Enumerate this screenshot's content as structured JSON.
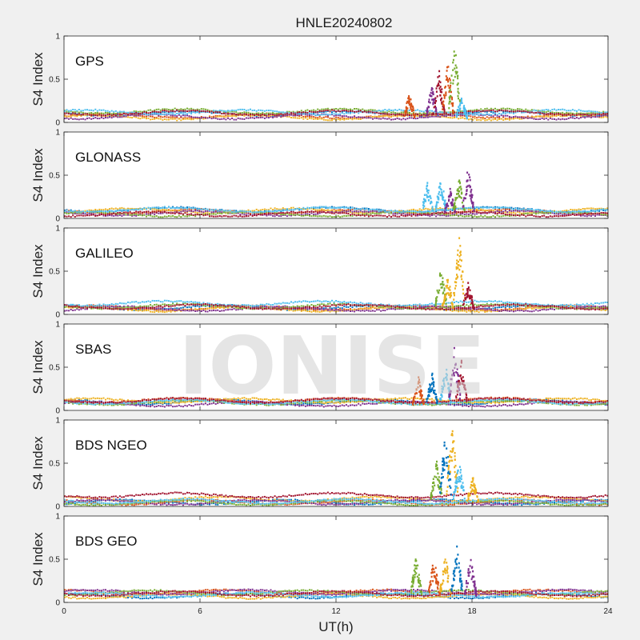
{
  "figure": {
    "title": "HNLE20240802",
    "watermark": "IONISE"
  },
  "colors": {
    "series": [
      "#0072BD",
      "#D95319",
      "#EDB120",
      "#7E2F8E",
      "#77AC30",
      "#4DBEEE",
      "#A2142F"
    ],
    "axes_background": "#ffffff",
    "figure_background": "#f0f0f0"
  },
  "chart_data": {
    "type": "scatter",
    "title": "HNLE20240802",
    "xlabel": "UT(h)",
    "xlim": [
      0,
      24
    ],
    "xticks": [
      "0",
      "6",
      "12",
      "18",
      "24"
    ],
    "panels": [
      {
        "label": "GPS",
        "ylabel": "S4 Index",
        "ylim": [
          0,
          1
        ],
        "yticks": [
          "0",
          "0.5",
          "1"
        ],
        "baseline": [
          0.03,
          0.15
        ],
        "enhancement_window_h": [
          14.8,
          18.0
        ],
        "enhancement_peaks": [
          {
            "t": 15.2,
            "s4": 0.35,
            "series": 1
          },
          {
            "t": 16.2,
            "s4": 0.45,
            "series": 3
          },
          {
            "t": 16.5,
            "s4": 0.65,
            "series": 6
          },
          {
            "t": 16.9,
            "s4": 0.72,
            "series": 1
          },
          {
            "t": 17.2,
            "s4": 0.95,
            "series": 4
          },
          {
            "t": 17.5,
            "s4": 0.32,
            "series": 5
          }
        ]
      },
      {
        "label": "GLONASS",
        "ylabel": "S4 Index",
        "ylim": [
          0,
          1
        ],
        "yticks": [
          "0",
          "0.5",
          "1"
        ],
        "baseline": [
          0.02,
          0.12
        ],
        "enhancement_window_h": [
          15.8,
          18.4
        ],
        "enhancement_peaks": [
          {
            "t": 16.0,
            "s4": 0.45,
            "series": 5
          },
          {
            "t": 16.6,
            "s4": 0.5,
            "series": 5
          },
          {
            "t": 17.0,
            "s4": 0.35,
            "series": 3
          },
          {
            "t": 17.4,
            "s4": 0.48,
            "series": 4
          },
          {
            "t": 17.8,
            "s4": 0.62,
            "series": 3
          }
        ]
      },
      {
        "label": "GALILEO",
        "ylabel": "S4 Index",
        "ylim": [
          0,
          1
        ],
        "yticks": [
          "0",
          "0.5",
          "1"
        ],
        "baseline": [
          0.03,
          0.18
        ],
        "enhancement_window_h": [
          16.2,
          18.5
        ],
        "enhancement_peaks": [
          {
            "t": 16.6,
            "s4": 0.58,
            "series": 4
          },
          {
            "t": 16.9,
            "s4": 0.45,
            "series": 2
          },
          {
            "t": 17.4,
            "s4": 0.97,
            "series": 2
          },
          {
            "t": 17.8,
            "s4": 0.4,
            "series": 6
          }
        ]
      },
      {
        "label": "SBAS",
        "ylabel": "S4 Index",
        "ylim": [
          0,
          1
        ],
        "yticks": [
          "0",
          "0.5",
          "1"
        ],
        "baseline": [
          0.05,
          0.15
        ],
        "enhancement_window_h": [
          14.8,
          18.0
        ],
        "enhancement_peaks": [
          {
            "t": 15.6,
            "s4": 0.4,
            "series": 1
          },
          {
            "t": 16.2,
            "s4": 0.45,
            "series": 0
          },
          {
            "t": 16.8,
            "s4": 0.55,
            "series": 5
          },
          {
            "t": 17.2,
            "s4": 0.78,
            "series": 3
          },
          {
            "t": 17.5,
            "s4": 0.6,
            "series": 6
          }
        ]
      },
      {
        "label": "BDS NGEO",
        "ylabel": "S4 Index",
        "ylim": [
          0,
          1
        ],
        "yticks": [
          "0",
          "0.5",
          "1"
        ],
        "baseline": [
          0.02,
          0.16
        ],
        "enhancement_window_h": [
          16.0,
          18.6
        ],
        "enhancement_peaks": [
          {
            "t": 16.4,
            "s4": 0.55,
            "series": 4
          },
          {
            "t": 16.8,
            "s4": 0.9,
            "series": 0
          },
          {
            "t": 17.1,
            "s4": 0.98,
            "series": 2
          },
          {
            "t": 17.4,
            "s4": 0.55,
            "series": 5
          },
          {
            "t": 18.0,
            "s4": 0.35,
            "series": 2
          }
        ]
      },
      {
        "label": "BDS GEO",
        "ylabel": "S4 Index",
        "ylim": [
          0,
          1
        ],
        "yticks": [
          "0",
          "0.5",
          "1"
        ],
        "baseline": [
          0.05,
          0.14
        ],
        "enhancement_window_h": [
          14.8,
          18.3
        ],
        "enhancement_peaks": [
          {
            "t": 15.5,
            "s4": 0.55,
            "series": 4
          },
          {
            "t": 16.3,
            "s4": 0.55,
            "series": 1
          },
          {
            "t": 16.8,
            "s4": 0.58,
            "series": 2
          },
          {
            "t": 17.3,
            "s4": 0.68,
            "series": 0
          },
          {
            "t": 17.9,
            "s4": 0.55,
            "series": 3
          }
        ]
      }
    ]
  }
}
